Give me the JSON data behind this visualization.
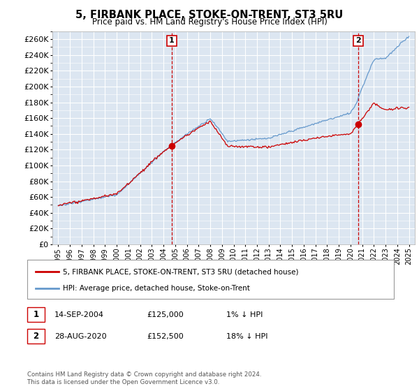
{
  "title": "5, FIRBANK PLACE, STOKE-ON-TRENT, ST3 5RU",
  "subtitle": "Price paid vs. HM Land Registry's House Price Index (HPI)",
  "ylim": [
    0,
    270000
  ],
  "yticks": [
    0,
    20000,
    40000,
    60000,
    80000,
    100000,
    120000,
    140000,
    160000,
    180000,
    200000,
    220000,
    240000,
    260000
  ],
  "xlim_left": 1994.5,
  "xlim_right": 2025.5,
  "bg_color": "#dce6f1",
  "grid_color": "#ffffff",
  "transaction1_x": 2004.71,
  "transaction1_y": 125000,
  "transaction2_x": 2020.66,
  "transaction2_y": 152500,
  "legend_line1": "5, FIRBANK PLACE, STOKE-ON-TRENT, ST3 5RU (detached house)",
  "legend_line2": "HPI: Average price, detached house, Stoke-on-Trent",
  "note1_label": "1",
  "note1_date": "14-SEP-2004",
  "note1_price": "£125,000",
  "note1_hpi": "1% ↓ HPI",
  "note2_label": "2",
  "note2_date": "28-AUG-2020",
  "note2_price": "£152,500",
  "note2_hpi": "18% ↓ HPI",
  "footer": "Contains HM Land Registry data © Crown copyright and database right 2024.\nThis data is licensed under the Open Government Licence v3.0.",
  "hpi_color": "#6699cc",
  "price_color": "#cc0000",
  "marker_color": "#cc0000",
  "dashed_line_color": "#cc0000"
}
